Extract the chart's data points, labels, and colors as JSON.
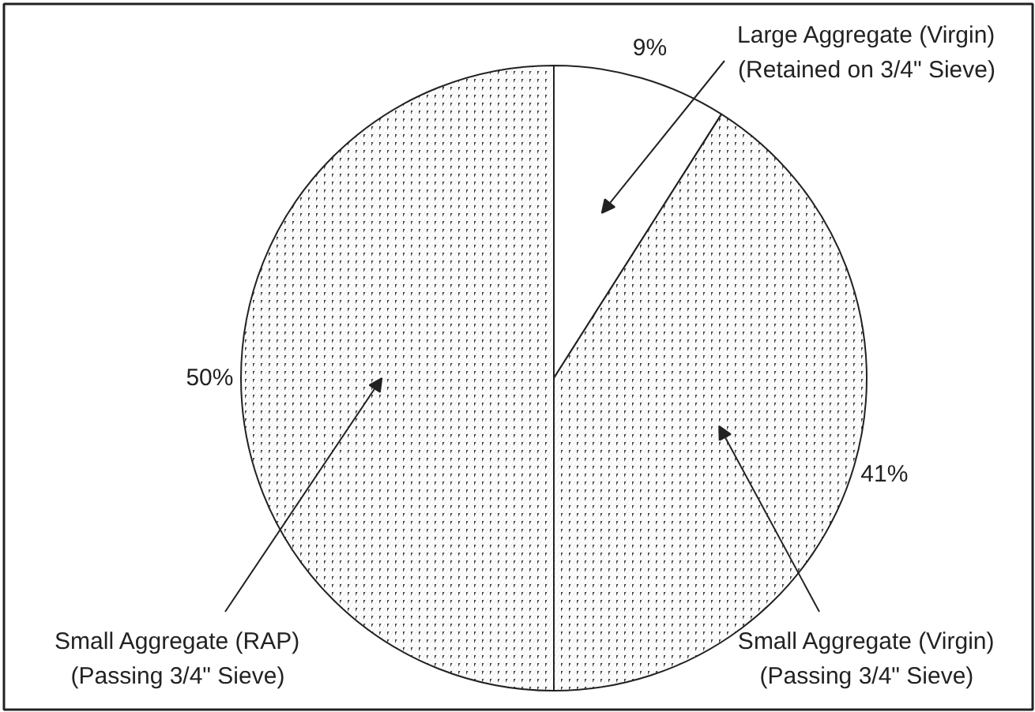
{
  "chart_data": {
    "type": "pie",
    "categories": [
      "Large Aggregate (Virgin)\n(Retained on 3/4\" Sieve)",
      "Small Aggregate (Virgin)\n(Passing 3/4\" Sieve)",
      "Small Aggregate (RAP)\n(Passing 3/4\" Sieve)"
    ],
    "values": [
      9,
      41,
      50
    ],
    "colors": [
      "#ffffff",
      "#444444",
      "#444444"
    ],
    "value_labels": [
      "9%",
      "41%",
      "50%"
    ]
  }
}
